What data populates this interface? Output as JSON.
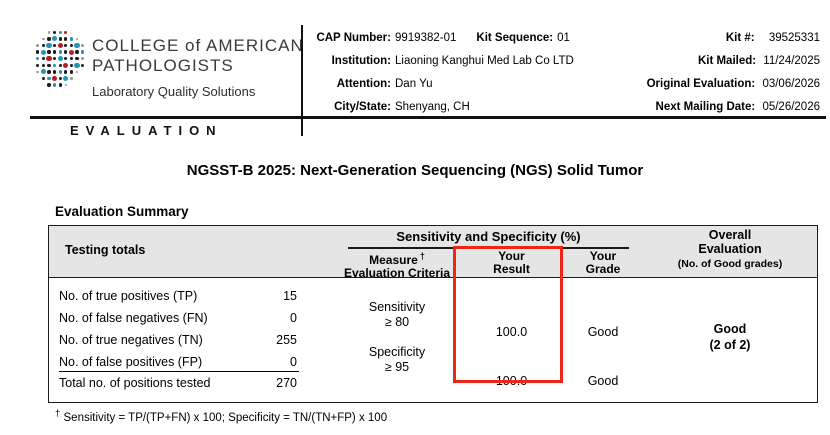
{
  "header": {
    "logo": {
      "name_line1": "COLLEGE of AMERICAN",
      "name_line2": "PATHOLOGISTS",
      "tagline": "Laboratory Quality Solutions",
      "banner": "EVALUATION"
    },
    "info_mid": {
      "cap_number_label": "CAP Number:",
      "cap_number": "9919382-01",
      "kit_sequence_label": "Kit Sequence:",
      "kit_sequence": "01",
      "institution_label": "Institution:",
      "institution": "Liaoning Kanghui Med Lab Co LTD",
      "attention_label": "Attention:",
      "attention": "Dan Yu",
      "city_state_label": "City/State:",
      "city_state": "Shenyang, CH"
    },
    "info_right": {
      "kit_label": "Kit #:",
      "kit": "39525331",
      "kit_mailed_label": "Kit Mailed:",
      "kit_mailed": "11/24/2025",
      "original_evaluation_label": "Original Evaluation:",
      "original_evaluation": "03/06/2026",
      "next_mailing_label": "Next Mailing Date:",
      "next_mailing": "05/26/2026"
    }
  },
  "title": "NGSST-B 2025: Next-Generation Sequencing (NGS) Solid Tumor",
  "summary": {
    "heading": "Evaluation Summary",
    "table": {
      "testing_totals_header": "Testing totals",
      "group_header": "Sensitivity and Specificity (%)",
      "col_measure_line1": "Measure",
      "col_measure_dagger": "†",
      "col_measure_line2": "Evaluation Criteria",
      "col_result_line1": "Your",
      "col_result_line2": "Result",
      "col_grade_line1": "Your",
      "col_grade_line2": "Grade",
      "col_overall_line1": "Overall",
      "col_overall_line2": "Evaluation",
      "col_overall_line3": "(No. of Good grades)",
      "totals": [
        {
          "label": "No. of true positives (TP)",
          "value": "15"
        },
        {
          "label": "No. of false negatives (FN)",
          "value": "0"
        },
        {
          "label": "No. of true negatives (TN)",
          "value": "255"
        },
        {
          "label": "No. of false positives (FP)",
          "value": "0"
        },
        {
          "label": "Total no. of positions tested",
          "value": "270"
        }
      ],
      "measures": [
        {
          "name": "Sensitivity",
          "criteria": "≥ 80",
          "result": "100.0",
          "grade": "Good"
        },
        {
          "name": "Specificity",
          "criteria": "≥ 95",
          "result": "100.0",
          "grade": "Good"
        }
      ],
      "overall_grade": "Good",
      "overall_detail": "(2 of 2)"
    }
  },
  "footnote": {
    "dagger": "†",
    "text": "Sensitivity = TP/(TP+FN) x 100; Specificity = TN/(TN+FP) x 100"
  },
  "colors": {
    "highlight_red": "#ee2619",
    "table_header_bg": "#e5e5e5",
    "logo_black": "#1c1c1c",
    "logo_teal": "#2396b4",
    "logo_red": "#b01f27",
    "logo_gray": "#9b9b9b"
  }
}
